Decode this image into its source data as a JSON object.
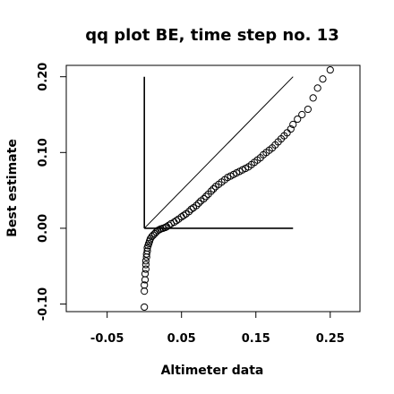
{
  "chart_data": {
    "type": "scatter",
    "title": "qq plot BE, time step no. 13",
    "xlabel": "Altimeter data",
    "ylabel": "Best estimate",
    "xlim": [
      -0.105,
      0.29
    ],
    "ylim": [
      -0.11,
      0.215
    ],
    "xticks": [
      -0.05,
      0.05,
      0.15,
      0.25
    ],
    "xtick_labels": [
      "-0.05",
      "0.05",
      "0.15",
      "0.25"
    ],
    "yticks": [
      -0.1,
      0.0,
      0.1,
      0.2
    ],
    "ytick_labels": [
      "-0.10",
      "0.00",
      "0.10",
      "0.20"
    ],
    "grid": false,
    "marker": "open-circle",
    "reference_lines": [
      {
        "name": "identity",
        "x": [
          0.0,
          0.2
        ],
        "y": [
          0.0,
          0.2
        ]
      },
      {
        "name": "vertical",
        "x": [
          0.0,
          0.0
        ],
        "y": [
          0.0,
          0.2
        ]
      },
      {
        "name": "horizontal",
        "x": [
          0.0,
          0.2
        ],
        "y": [
          0.0,
          0.0
        ]
      }
    ],
    "series": [
      {
        "x": [
          0.0,
          0.0,
          0.0,
          0.001,
          0.001,
          0.002,
          0.002,
          0.002,
          0.003,
          0.003,
          0.004,
          0.004,
          0.005,
          0.006,
          0.007,
          0.008,
          0.01,
          0.012,
          0.014,
          0.016,
          0.018,
          0.02,
          0.022,
          0.025,
          0.028,
          0.03,
          0.033,
          0.036,
          0.04,
          0.043,
          0.046,
          0.05,
          0.053,
          0.056,
          0.06,
          0.063,
          0.066,
          0.07,
          0.073,
          0.076,
          0.08,
          0.083,
          0.086,
          0.09,
          0.093,
          0.096,
          0.1,
          0.104,
          0.108,
          0.112,
          0.116,
          0.12,
          0.124,
          0.128,
          0.132,
          0.136,
          0.14,
          0.144,
          0.148,
          0.152,
          0.156,
          0.16,
          0.164,
          0.168,
          0.172,
          0.176,
          0.18,
          0.184,
          0.188,
          0.192,
          0.197,
          0.2,
          0.206,
          0.212,
          0.22,
          0.227,
          0.233,
          0.24,
          0.25
        ],
        "y": [
          -0.104,
          -0.083,
          -0.075,
          -0.068,
          -0.06,
          -0.054,
          -0.048,
          -0.043,
          -0.038,
          -0.034,
          -0.03,
          -0.026,
          -0.023,
          -0.02,
          -0.017,
          -0.014,
          -0.011,
          -0.009,
          -0.007,
          -0.005,
          -0.003,
          -0.002,
          -0.001,
          0.0,
          0.001,
          0.002,
          0.004,
          0.006,
          0.008,
          0.01,
          0.012,
          0.015,
          0.017,
          0.019,
          0.022,
          0.025,
          0.027,
          0.03,
          0.033,
          0.036,
          0.039,
          0.042,
          0.045,
          0.049,
          0.052,
          0.055,
          0.058,
          0.061,
          0.064,
          0.067,
          0.069,
          0.071,
          0.073,
          0.075,
          0.077,
          0.079,
          0.081,
          0.084,
          0.087,
          0.09,
          0.093,
          0.097,
          0.1,
          0.103,
          0.106,
          0.11,
          0.114,
          0.118,
          0.122,
          0.126,
          0.131,
          0.137,
          0.144,
          0.15,
          0.157,
          0.172,
          0.185,
          0.197,
          0.209
        ]
      }
    ]
  }
}
